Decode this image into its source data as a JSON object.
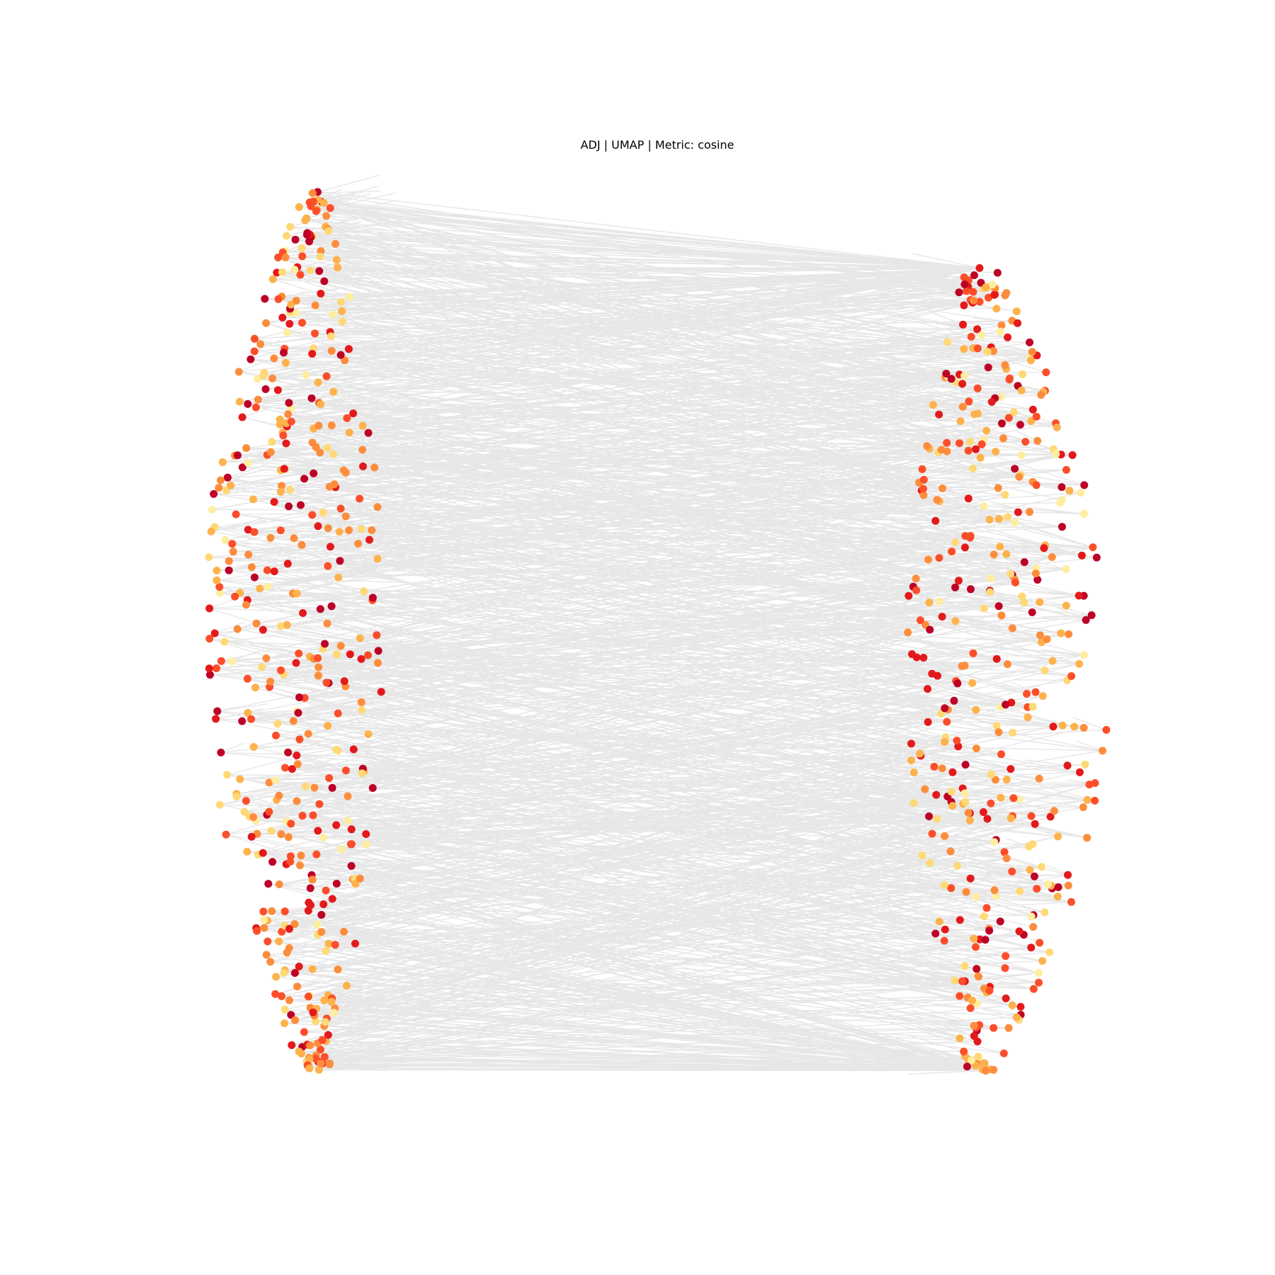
{
  "chart_data": {
    "type": "scatter",
    "title": "ADJ | UMAP | Metric: cosine",
    "axes": "off",
    "grid": false,
    "legend": "none",
    "edge_color": "#d3d3d3",
    "colormap": "YlOrRd",
    "colormap_stops": [
      "#ffeda0",
      "#fed976",
      "#feb24c",
      "#fd8d3c",
      "#fc4e2a",
      "#e31a1c",
      "#bd0026"
    ],
    "groups": [
      {
        "side": "left",
        "node_count": 460,
        "x_range": [
          0.16,
          0.3
        ],
        "y_range": [
          0.15,
          0.84
        ]
      },
      {
        "side": "right",
        "node_count": 420,
        "x_range": [
          0.71,
          0.87
        ],
        "y_range": [
          0.21,
          0.84
        ]
      }
    ],
    "edges": "dense connections from each left node to right nodes, plus short intra-group links"
  }
}
